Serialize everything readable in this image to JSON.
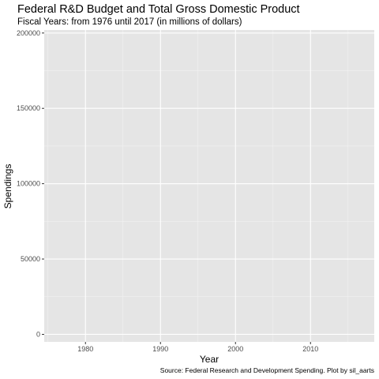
{
  "chart_data": {
    "type": "line",
    "title": "Federal R&D Budget and Total Gross Domestic Product",
    "subtitle": "Fiscal Years: from 1976 until 2017 (in millions of dollars)",
    "xlabel": "Year",
    "ylabel": "Spendings",
    "caption": "Source: Federal Research and Development Spending. Plot by sil_aarts",
    "xlim": [
      1974.5,
      2018.5
    ],
    "ylim": [
      -5000,
      202000
    ],
    "x_ticks": [
      1980,
      1990,
      2000,
      2010
    ],
    "y_ticks": [
      0,
      50000,
      100000,
      150000,
      200000
    ],
    "x_tick_labels": [
      "1980",
      "1990",
      "2000",
      "2010"
    ],
    "y_tick_labels": [
      "0",
      "50000",
      "100000",
      "150000",
      "200000"
    ],
    "grid": true,
    "series": []
  },
  "colors": {
    "panel_background": "#e5e5e5",
    "grid_major": "#ffffff",
    "grid_minor": "#f2f2f2",
    "tick_label": "#4d4d4d",
    "tick_mark": "#333333"
  }
}
